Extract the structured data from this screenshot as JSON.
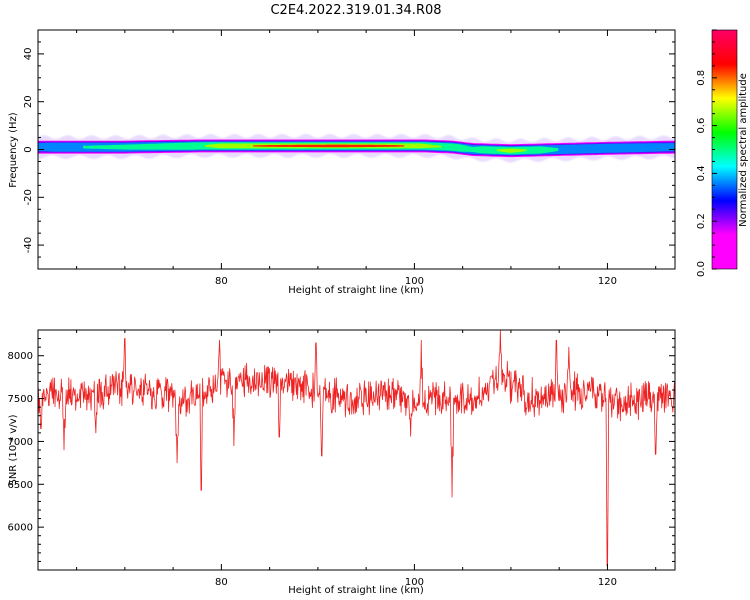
{
  "figure": {
    "title": "C2E4.2022.319.01.34.R08"
  },
  "chart_data": [
    {
      "type": "heatmap",
      "xlabel": "Height of straight line (km)",
      "ylabel": "Frequency (Hz)",
      "xlim": [
        61,
        127
      ],
      "ylim": [
        -50,
        50
      ],
      "xticks": [
        80,
        100,
        120
      ],
      "yticks": [
        -40,
        -20,
        0,
        20,
        40
      ],
      "band_center_hz": [
        [
          61,
          1
        ],
        [
          70,
          1
        ],
        [
          78,
          1.5
        ],
        [
          85,
          1.5
        ],
        [
          95,
          1.5
        ],
        [
          101,
          1.5
        ],
        [
          104,
          1
        ],
        [
          106,
          0
        ],
        [
          110,
          -0.5
        ],
        [
          115,
          0
        ],
        [
          120,
          0.5
        ],
        [
          127,
          1
        ]
      ],
      "peak_amplitude": [
        [
          61,
          0.4
        ],
        [
          70,
          0.5
        ],
        [
          77,
          0.55
        ],
        [
          80,
          0.72
        ],
        [
          85,
          0.85
        ],
        [
          92,
          0.9
        ],
        [
          98,
          0.85
        ],
        [
          102,
          0.65
        ],
        [
          106,
          0.5
        ],
        [
          110,
          0.7
        ],
        [
          115,
          0.45
        ],
        [
          120,
          0.42
        ],
        [
          127,
          0.4
        ]
      ],
      "colorbar": {
        "label": "Normalized spectral amplitude",
        "range": [
          0,
          1
        ],
        "ticks": [
          "0.0",
          "0.2",
          "0.4",
          "0.6",
          "0.8"
        ],
        "colors": [
          "#ff00ff",
          "#ff00ff",
          "#0000ff",
          "#00ffff",
          "#00ff00",
          "#ffff00",
          "#ff0000",
          "#ff0066"
        ]
      }
    },
    {
      "type": "line",
      "xlabel": "Height of straight line (km)",
      "ylabel": "SNR (10 * v/v)",
      "xlim": [
        61,
        127
      ],
      "ylim": [
        5500,
        8300
      ],
      "xticks": [
        80,
        100,
        120
      ],
      "yticks": [
        6000,
        6500,
        7000,
        7500,
        8000
      ],
      "series": [
        {
          "color": "#ee2222",
          "samples": 1200,
          "baseline": [
            [
              61,
              7500
            ],
            [
              64,
              7550
            ],
            [
              67,
              7550
            ],
            [
              70,
              7650
            ],
            [
              73,
              7600
            ],
            [
              76,
              7450
            ],
            [
              79,
              7650
            ],
            [
              82,
              7700
            ],
            [
              85,
              7700
            ],
            [
              88,
              7650
            ],
            [
              91,
              7550
            ],
            [
              94,
              7450
            ],
            [
              97,
              7600
            ],
            [
              100,
              7450
            ],
            [
              103,
              7500
            ],
            [
              106,
              7450
            ],
            [
              109,
              7750
            ],
            [
              112,
              7500
            ],
            [
              115,
              7550
            ],
            [
              118,
              7600
            ],
            [
              121,
              7450
            ],
            [
              124,
              7500
            ],
            [
              127,
              7500
            ]
          ],
          "dips": [
            [
              61.3,
              7150
            ],
            [
              63.7,
              6900
            ],
            [
              67.0,
              7100
            ],
            [
              75.4,
              6750
            ],
            [
              77.9,
              6430
            ],
            [
              81.3,
              6950
            ],
            [
              86.0,
              7050
            ],
            [
              90.4,
              6830
            ],
            [
              99.6,
              7060
            ],
            [
              103.9,
              6350
            ],
            [
              120.0,
              5550
            ],
            [
              125.0,
              6850
            ]
          ],
          "peaks": [
            [
              70.0,
              8200
            ],
            [
              79.8,
              8180
            ],
            [
              89.8,
              8150
            ],
            [
              100.7,
              8180
            ],
            [
              108.9,
              8300
            ],
            [
              114.7,
              8180
            ],
            [
              116.0,
              8100
            ]
          ]
        }
      ]
    }
  ]
}
